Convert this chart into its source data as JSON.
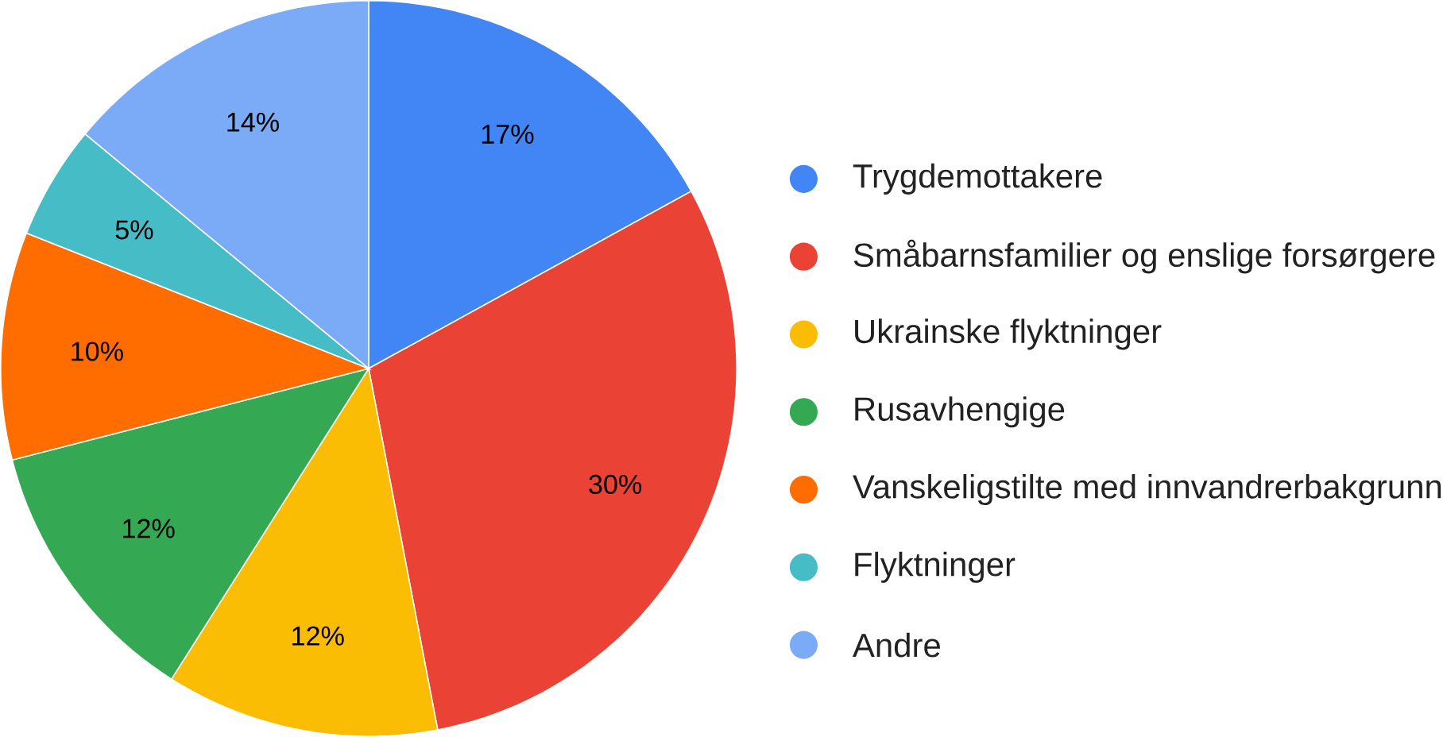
{
  "chart_data": {
    "type": "pie",
    "categories": [
      "Trygdemottakere",
      "Småbarnsfamilier og enslige forsørgere",
      "Ukrainske flyktninger",
      "Rusavhengige",
      "Vanskeligstilte med innvandrerbakgrunn",
      "Flyktninger",
      "Andre"
    ],
    "values": [
      17,
      30,
      12,
      12,
      10,
      5,
      14
    ],
    "value_labels": [
      "17%",
      "30%",
      "12%",
      "12%",
      "10%",
      "5%",
      "14%"
    ],
    "colors": [
      "#4285f4",
      "#ea4335",
      "#fbbc04",
      "#34a853",
      "#ff6d01",
      "#46bdc6",
      "#7baaf7"
    ],
    "legend": "right"
  }
}
